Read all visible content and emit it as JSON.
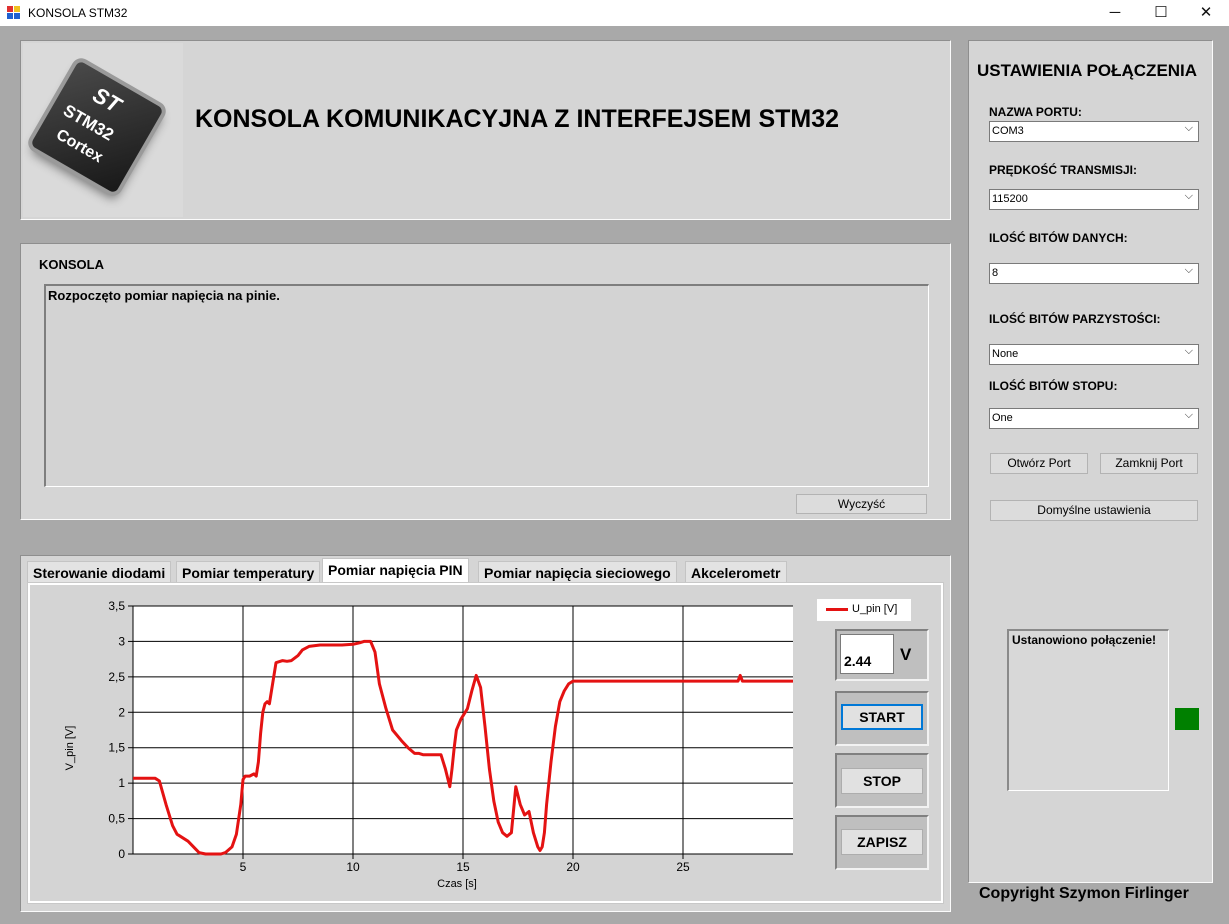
{
  "window": {
    "title": "KONSOLA STM32",
    "minimize_glyph": "─",
    "maximize_glyph": "☐",
    "close_glyph": "✕",
    "icon": "app-window-icon"
  },
  "header": {
    "title": "KONSOLA KOMUNIKACYJNA Z INTERFEJSEM STM32",
    "logo": {
      "brand": "ST",
      "model": "STM32",
      "family": "Cortex"
    }
  },
  "console": {
    "label": "KONSOLA",
    "text": "Rozpoczęto pomiar napięcia na pinie.",
    "clear_button": "Wyczyść"
  },
  "tabs": [
    {
      "label": "Sterowanie diodami",
      "active": false
    },
    {
      "label": "Pomiar temperatury",
      "active": false
    },
    {
      "label": "Pomiar napięcia PIN",
      "active": true
    },
    {
      "label": "Pomiar napięcia sieciowego",
      "active": false
    },
    {
      "label": "Akcelerometr",
      "active": false
    }
  ],
  "measurement": {
    "value": "2.44",
    "unit": "V",
    "start_button": "START",
    "stop_button": "STOP",
    "save_button": "ZAPISZ"
  },
  "chart_data": {
    "type": "line",
    "title": "",
    "xlabel": "Czas [s]",
    "ylabel": "V_pin [V]",
    "xlim": [
      0,
      30
    ],
    "ylim": [
      0,
      3.5
    ],
    "x_ticks": [
      "5",
      "10",
      "15",
      "20",
      "25"
    ],
    "y_ticks": [
      "0",
      "0,5",
      "1",
      "1,5",
      "2",
      "2,5",
      "3",
      "3,5"
    ],
    "grid": true,
    "legend_position": "top-right",
    "series": [
      {
        "name": "U_pin [V]",
        "color": "#e41212",
        "x": [
          0,
          1.0,
          1.2,
          1.5,
          1.8,
          2.0,
          2.5,
          3.0,
          3.3,
          4.0,
          4.2,
          4.5,
          4.7,
          4.9,
          5.0,
          5.1,
          5.3,
          5.5,
          5.6,
          5.7,
          5.8,
          5.9,
          6.0,
          6.1,
          6.2,
          6.5,
          6.8,
          7.0,
          7.2,
          7.5,
          7.7,
          8.0,
          8.5,
          9.0,
          9.5,
          10.0,
          10.3,
          10.5,
          10.8,
          11.0,
          11.2,
          11.5,
          11.8,
          12.2,
          12.5,
          12.8,
          13.0,
          13.2,
          13.5,
          13.8,
          14.0,
          14.2,
          14.4,
          14.5,
          14.6,
          14.7,
          14.9,
          15.0,
          15.2,
          15.4,
          15.6,
          15.8,
          16.0,
          16.2,
          16.4,
          16.6,
          16.8,
          17.0,
          17.2,
          17.4,
          17.6,
          17.8,
          18.0,
          18.2,
          18.4,
          18.5,
          18.6,
          18.7,
          18.8,
          19.0,
          19.2,
          19.4,
          19.6,
          19.8,
          20.0,
          20.5,
          21.0,
          22.0,
          23.0,
          24.0,
          25.0,
          26.0,
          27.0,
          27.5,
          27.6,
          27.7,
          27.8,
          28.0,
          29.0,
          30.0
        ],
        "y": [
          1.07,
          1.07,
          1.03,
          0.7,
          0.4,
          0.28,
          0.18,
          0.02,
          0.0,
          0.0,
          0.02,
          0.1,
          0.28,
          0.7,
          1.05,
          1.1,
          1.1,
          1.13,
          1.1,
          1.3,
          1.7,
          2.0,
          2.12,
          2.15,
          2.12,
          2.7,
          2.73,
          2.72,
          2.73,
          2.8,
          2.88,
          2.93,
          2.95,
          2.95,
          2.95,
          2.96,
          2.98,
          3.0,
          3.0,
          2.85,
          2.4,
          2.05,
          1.75,
          1.6,
          1.5,
          1.42,
          1.42,
          1.4,
          1.4,
          1.4,
          1.4,
          1.2,
          0.95,
          1.2,
          1.5,
          1.75,
          1.9,
          1.95,
          2.05,
          2.3,
          2.52,
          2.35,
          1.8,
          1.2,
          0.75,
          0.45,
          0.3,
          0.25,
          0.3,
          0.95,
          0.7,
          0.55,
          0.6,
          0.3,
          0.1,
          0.05,
          0.1,
          0.3,
          0.7,
          1.3,
          1.8,
          2.15,
          2.3,
          2.4,
          2.44,
          2.44,
          2.44,
          2.44,
          2.44,
          2.44,
          2.44,
          2.44,
          2.44,
          2.44,
          2.52,
          2.44,
          2.44,
          2.44,
          2.44,
          2.44
        ]
      }
    ]
  },
  "settings": {
    "title": "USTAWIENIA POŁĄCZENIA",
    "port_label": "NAZWA PORTU:",
    "port_value": "COM3",
    "baud_label": "PRĘDKOŚĆ TRANSMISJI:",
    "baud_value": "115200",
    "databits_label": "ILOŚĆ BITÓW DANYCH:",
    "databits_value": "8",
    "parity_label": "ILOŚĆ BITÓW PARZYSTOŚCI:",
    "parity_value": "None",
    "stopbits_label": "ILOŚĆ BITÓW STOPU:",
    "stopbits_value": "One",
    "open_button": "Otwórz Port",
    "close_button": "Zamknij Port",
    "defaults_button": "Domyślne ustawienia",
    "status_text": "Ustanowiono połączenie!",
    "status_led_color": "#008000",
    "dropdown_glyph": "⌵"
  },
  "footer": {
    "copyright": "Copyright Szymon Firlinger"
  }
}
